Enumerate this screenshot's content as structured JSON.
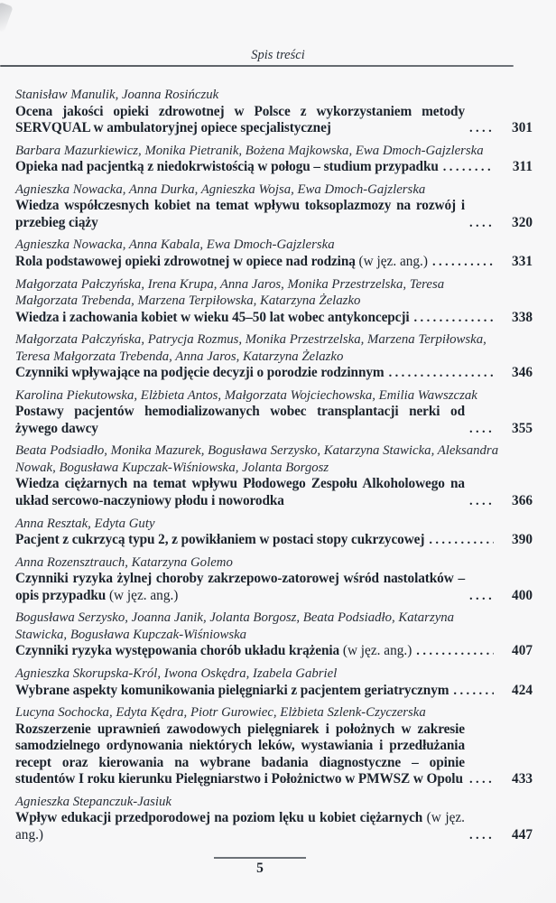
{
  "page": {
    "header_title": "Spis treści",
    "footer_page_number": "5",
    "background_color": "#f5f5f6",
    "text_color": "#1c232c"
  },
  "toc": {
    "entries": [
      {
        "authors": "Stanisław Manulik, Joanna Rosińczuk",
        "title": "Ocena jakości opieki zdrowotnej w Polsce z wykorzystaniem metody SERVQUAL w ambulatoryjnej opiece specjalistycznej",
        "suffix": "",
        "page": "301"
      },
      {
        "authors": "Barbara Mazurkiewicz, Monika Pietranik, Bożena Majkowska, Ewa Dmoch-Gajzlerska",
        "title": "Opieka nad pacjentką z niedokrwistością w połogu – studium przypadku",
        "suffix": "",
        "page": "311"
      },
      {
        "authors": "Agnieszka Nowacka, Anna Durka, Agnieszka Wojsa, Ewa Dmoch-Gajzlerska",
        "title": "Wiedza współczesnych kobiet na temat wpływu toksoplazmozy na rozwój i przebieg ciąży",
        "suffix": "",
        "page": "320"
      },
      {
        "authors": "Agnieszka Nowacka, Anna Kabala, Ewa Dmoch-Gajzlerska",
        "title": "Rola podstawowej opieki zdrowotnej w opiece nad rodziną",
        "suffix": "(w jęz. ang.)",
        "page": "331"
      },
      {
        "authors": "Małgorzata Pałczyńska, Irena Krupa, Anna Jaros, Monika Przestrzelska, Teresa Małgorzata Trebenda, Marzena Terpiłowska, Katarzyna Żelazko",
        "title": "Wiedza i zachowania kobiet w wieku 45–50 lat wobec antykoncepcji",
        "suffix": "",
        "page": "338"
      },
      {
        "authors": "Małgorzata Pałczyńska, Patrycja Rozmus, Monika Przestrzelska, Marzena Terpiłowska, Teresa Małgorzata Trebenda, Anna Jaros, Katarzyna Żelazko",
        "title": "Czynniki wpływające na podjęcie decyzji o porodzie rodzinnym",
        "suffix": "",
        "page": "346"
      },
      {
        "authors": "Karolina Piekutowska, Elżbieta Antos, Małgorzata Wojciechowska, Emilia Wawszczak",
        "title": "Postawy pacjentów hemodializowanych wobec transplantacji nerki od żywego dawcy",
        "suffix": "",
        "page": "355"
      },
      {
        "authors": "Beata Podsiadło, Monika Mazurek, Bogusława Serzysko, Katarzyna Stawicka, Aleksandra Nowak, Bogusława Kupczak-Wiśniowska, Jolanta Borgosz",
        "title": "Wiedza ciężarnych na temat wpływu Płodowego Zespołu Alkoholowego na układ sercowo-naczyniowy płodu i noworodka",
        "suffix": "",
        "page": "366"
      },
      {
        "authors": "Anna Resztak, Edyta Guty",
        "title": "Pacjent z cukrzycą typu 2, z powikłaniem w postaci stopy cukrzycowej",
        "suffix": "",
        "page": "390"
      },
      {
        "authors": "Anna Rozensztrauch, Katarzyna Golemo",
        "title": "Czynniki ryzyka żylnej choroby zakrzepowo-zatorowej wśród nastolatków – opis przypadku",
        "suffix": "(w jęz. ang.)",
        "page": "400"
      },
      {
        "authors": "Bogusława Serzysko, Joanna Janik, Jolanta Borgosz, Beata Podsiadło, Katarzyna Stawicka, Bogusława Kupczak-Wiśniowska",
        "title": "Czynniki ryzyka występowania chorób układu krążenia",
        "suffix": "(w jęz. ang.)",
        "page": "407"
      },
      {
        "authors": "Agnieszka Skorupska-Król, Iwona Oskędra, Izabela Gabriel",
        "title": "Wybrane aspekty komunikowania pielęgniarki z pacjentem geriatrycznym",
        "suffix": "",
        "page": "424"
      },
      {
        "authors": "Lucyna Sochocka, Edyta Kędra, Piotr Gurowiec, Elżbieta Szlenk-Czyczerska",
        "title": "Rozszerzenie uprawnień zawodowych pielęgniarek i położnych w zakresie samodzielnego ordynowania niektórych leków, wystawiania i przedłużania recept oraz kierowania na wybrane badania diagnostyczne – opinie studentów I roku kierunku Pielęgniarstwo i Położnictwo w PMWSZ w Opolu",
        "suffix": "",
        "page": "433"
      },
      {
        "authors": "Agnieszka Stepanczuk-Jasiuk",
        "title": "Wpływ edukacji przedporodowej na poziom lęku u kobiet ciężarnych",
        "suffix": "(w jęz. ang.)",
        "page": "447"
      }
    ]
  }
}
